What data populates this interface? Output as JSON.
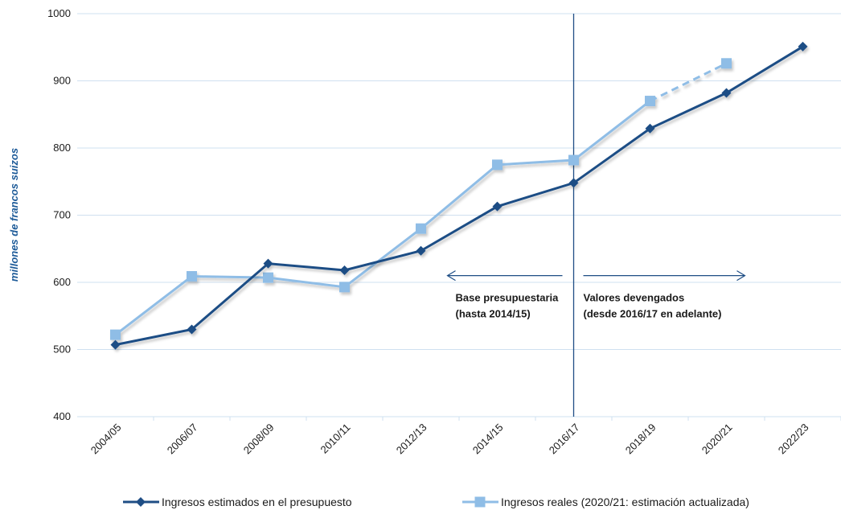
{
  "chart_data": {
    "type": "line",
    "ylabel": "millones de francos suizos",
    "xlabel": "",
    "ylim": [
      400,
      1000
    ],
    "yticks": [
      400,
      500,
      600,
      700,
      800,
      900,
      1000
    ],
    "grid": true,
    "categories": [
      "2004/05",
      "2006/07",
      "2008/09",
      "2010/11",
      "2012/13",
      "2014/15",
      "2016/17",
      "2018/19",
      "2020/21",
      "2022/23"
    ],
    "series": [
      {
        "name": "Ingresos estimados en el presupuesto",
        "color": "#1f4e85",
        "marker": "diamond",
        "values": [
          507,
          530,
          628,
          618,
          647,
          713,
          748,
          829,
          882,
          951
        ]
      },
      {
        "name": "Ingresos reales (2020/21: estimación actualizada)",
        "color": "#8fbde6",
        "marker": "square",
        "values": [
          522,
          609,
          607,
          593,
          680,
          775,
          782,
          870,
          926,
          null
        ],
        "dashed_from_index": 7
      }
    ],
    "divider": {
      "between": "2016/17",
      "color": "#1f4e85"
    },
    "annotations": [
      {
        "lines": [
          "Base presupuestaria",
          "(hasta 2014/15)"
        ],
        "arrow": "left"
      },
      {
        "lines": [
          "Valores devengados",
          "(desde 2016/17 en adelante)"
        ],
        "arrow": "right"
      }
    ],
    "legend_position": "bottom"
  }
}
